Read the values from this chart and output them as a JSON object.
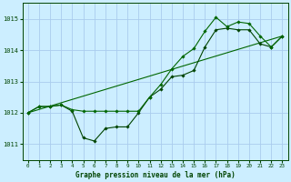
{
  "title": "Graphe pression niveau de la mer (hPa)",
  "bg_color": "#cceeff",
  "grid_color": "#aaccee",
  "line_color_dark": "#004400",
  "line_color_mid": "#006600",
  "xlim": [
    -0.5,
    23.5
  ],
  "ylim": [
    1010.5,
    1015.5
  ],
  "yticks": [
    1011,
    1012,
    1013,
    1014,
    1015
  ],
  "xticks": [
    0,
    1,
    2,
    3,
    4,
    5,
    6,
    7,
    8,
    9,
    10,
    11,
    12,
    13,
    14,
    15,
    16,
    17,
    18,
    19,
    20,
    21,
    22,
    23
  ],
  "trend_x": [
    0,
    23
  ],
  "trend_y": [
    1012.0,
    1014.45
  ],
  "series1_x": [
    0,
    1,
    2,
    3,
    4,
    5,
    6,
    7,
    8,
    9,
    10,
    11,
    12,
    13,
    14,
    15,
    16,
    17,
    18,
    19,
    20,
    21,
    22,
    23
  ],
  "series1_y": [
    1012.0,
    1012.2,
    1012.2,
    1012.25,
    1012.05,
    1011.2,
    1011.1,
    1011.5,
    1011.55,
    1011.55,
    1012.0,
    1012.5,
    1012.75,
    1013.15,
    1013.2,
    1013.35,
    1014.1,
    1014.65,
    1014.7,
    1014.65,
    1014.65,
    1014.2,
    1014.1,
    1014.45
  ],
  "series2_x": [
    0,
    1,
    2,
    3,
    4,
    5,
    6,
    7,
    8,
    9,
    10,
    11,
    12,
    13,
    14,
    15,
    16,
    17,
    18,
    19,
    20,
    21,
    22,
    23
  ],
  "series2_y": [
    1012.0,
    1012.2,
    1012.2,
    1012.25,
    1012.1,
    1012.05,
    1012.05,
    1012.05,
    1012.05,
    1012.05,
    1012.05,
    1012.5,
    1012.9,
    1013.4,
    1013.8,
    1014.05,
    1014.6,
    1015.05,
    1014.75,
    1014.9,
    1014.85,
    1014.45,
    1014.1,
    1014.45
  ]
}
